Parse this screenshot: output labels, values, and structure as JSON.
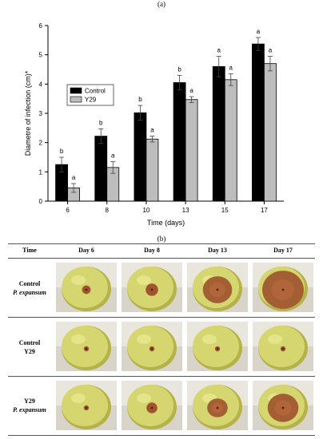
{
  "panel_a_label": "(a)",
  "panel_b_label": "(b)",
  "chart_data": {
    "type": "bar",
    "categories": [
      "6",
      "8",
      "10",
      "13",
      "15",
      "17"
    ],
    "series": [
      {
        "name": "Control",
        "color": "#000000",
        "values": [
          1.25,
          2.22,
          3.02,
          4.05,
          4.6,
          5.37
        ],
        "errors": [
          0.25,
          0.25,
          0.25,
          0.25,
          0.35,
          0.22
        ],
        "sig": [
          "b",
          "b",
          "b",
          "b",
          "a",
          "a"
        ]
      },
      {
        "name": "Y29",
        "color": "#bdbdbd",
        "values": [
          0.45,
          1.15,
          2.12,
          3.47,
          4.15,
          4.7
        ],
        "errors": [
          0.15,
          0.2,
          0.1,
          0.1,
          0.2,
          0.25
        ],
        "sig": [
          "a",
          "a",
          "a",
          "a",
          "a",
          "a"
        ]
      }
    ],
    "xlabel": "Time (days)",
    "ylabel": "Diametre of infection (cm)*",
    "yticks": [
      "0",
      "1",
      "2",
      "3",
      "4",
      "5",
      "6"
    ],
    "ylim": [
      0,
      6
    ],
    "legend_position": "upper-left",
    "grid": false
  },
  "table": {
    "headers": [
      "Time",
      "Day 6",
      "Day 8",
      "Day 13",
      "Day 17"
    ],
    "rows": [
      {
        "label_line1": "Control",
        "label_line2": "P. expansum",
        "line2_italic": true,
        "lesions": [
          0.14,
          0.24,
          0.68,
          1.0
        ]
      },
      {
        "label_line1": "Control",
        "label_line2": "Y29",
        "line2_italic": false,
        "lesions": [
          0.05,
          0.05,
          0.05,
          0.05
        ]
      },
      {
        "label_line1": "Y29",
        "label_line2": "P. expansum",
        "line2_italic": true,
        "lesions": [
          0.05,
          0.2,
          0.45,
          0.72
        ]
      }
    ]
  },
  "colors": {
    "apple_skin": "#d6d670",
    "apple_shade": "#b5b24a",
    "lesion": "#a0542e",
    "lesion_center": "#4a2414",
    "background_top": "#e9e6de",
    "background_bottom": "#d8d4c9"
  }
}
